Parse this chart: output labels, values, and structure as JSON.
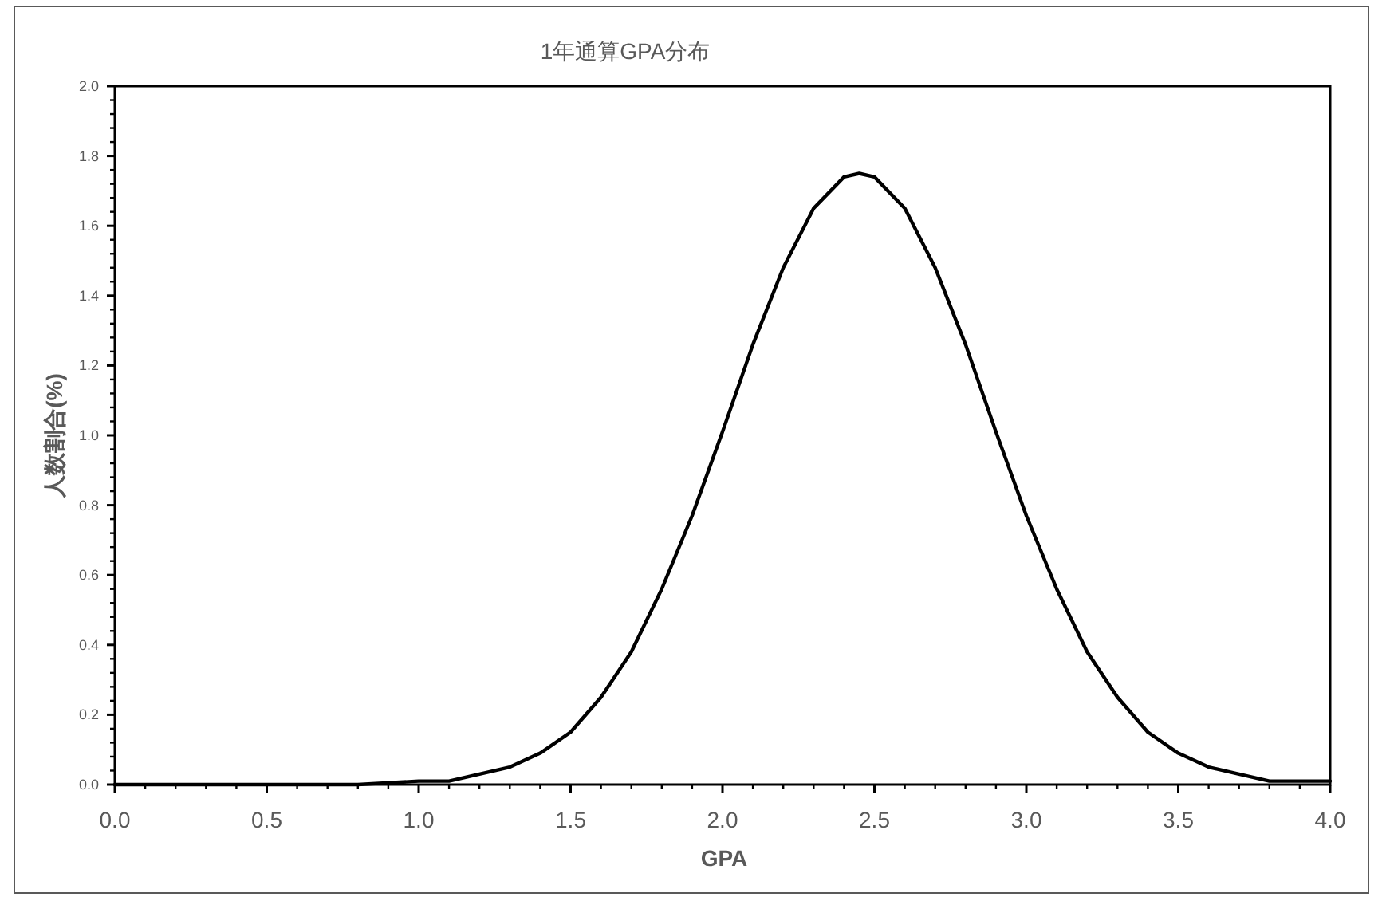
{
  "chart_data": {
    "type": "line",
    "title": "1年通算GPA分布",
    "xlabel": "GPA",
    "ylabel": "人数割合(%)",
    "xlim": [
      0,
      4
    ],
    "ylim": [
      0,
      2
    ],
    "xticks": [
      {
        "value": 0,
        "label": "0.0"
      },
      {
        "value": 0.5,
        "label": "0.5"
      },
      {
        "value": 1,
        "label": "1.0"
      },
      {
        "value": 1.5,
        "label": "1.5"
      },
      {
        "value": 2,
        "label": "2.0"
      },
      {
        "value": 2.5,
        "label": "2.5"
      },
      {
        "value": 3,
        "label": "3.0"
      },
      {
        "value": 3.5,
        "label": "3.5"
      },
      {
        "value": 4,
        "label": "4.0"
      }
    ],
    "yticks": [
      {
        "value": 0,
        "label": "0.0"
      },
      {
        "value": 0.2,
        "label": "0.2"
      },
      {
        "value": 0.4,
        "label": "0.4"
      },
      {
        "value": 0.6,
        "label": "0.6"
      },
      {
        "value": 0.8,
        "label": "0.8"
      },
      {
        "value": 1,
        "label": "1.0"
      },
      {
        "value": 1.2,
        "label": "1.2"
      },
      {
        "value": 1.4,
        "label": "1.4"
      },
      {
        "value": 1.6,
        "label": "1.6"
      },
      {
        "value": 1.8,
        "label": "1.8"
      },
      {
        "value": 2,
        "label": "2.0"
      }
    ],
    "grid": false,
    "marker": "none",
    "line_style": "solid",
    "series": [
      {
        "color": "#000000",
        "x": [
          0,
          0.2,
          0.4,
          0.6,
          0.8,
          1.0,
          1.1,
          1.2,
          1.3,
          1.4,
          1.5,
          1.6,
          1.7,
          1.8,
          1.9,
          2.0,
          2.1,
          2.2,
          2.3,
          2.4,
          2.45,
          2.5,
          2.6,
          2.7,
          2.8,
          2.9,
          3.0,
          3.1,
          3.2,
          3.3,
          3.4,
          3.5,
          3.6,
          3.7,
          3.8,
          3.9,
          4.0
        ],
        "values": [
          0,
          0,
          0,
          0,
          0,
          0.01,
          0.01,
          0.03,
          0.05,
          0.09,
          0.15,
          0.25,
          0.38,
          0.56,
          0.77,
          1.01,
          1.26,
          1.48,
          1.65,
          1.74,
          1.75,
          1.74,
          1.65,
          1.48,
          1.26,
          1.01,
          0.77,
          0.56,
          0.38,
          0.25,
          0.15,
          0.09,
          0.05,
          0.03,
          0.01,
          0.01,
          0.01
        ]
      }
    ]
  }
}
